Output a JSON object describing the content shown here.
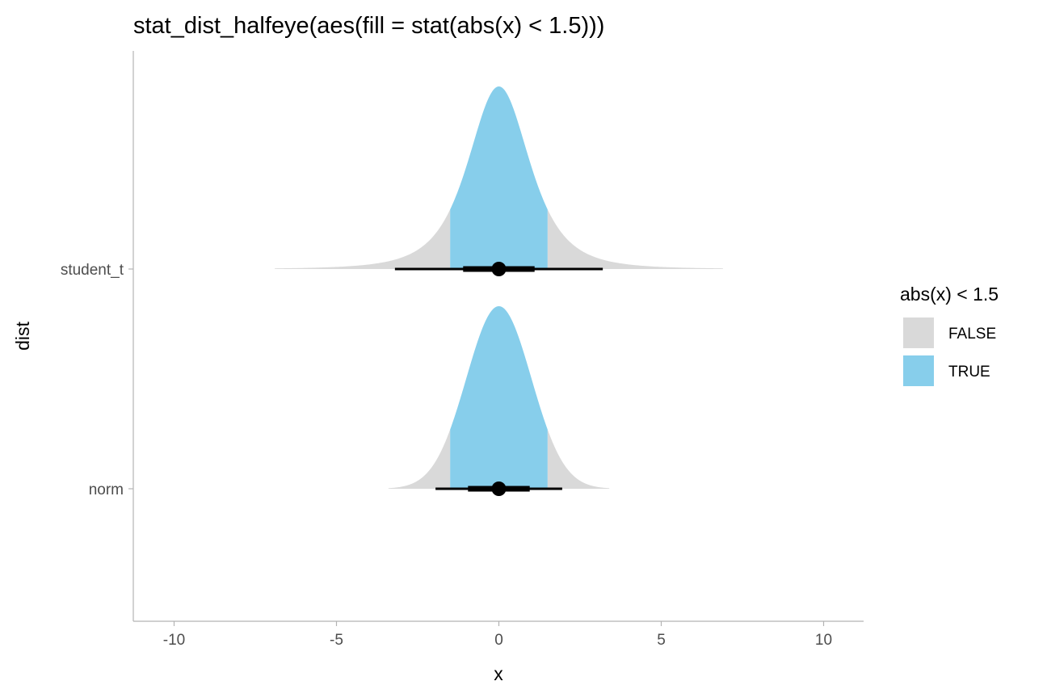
{
  "chart_data": {
    "type": "halfeye",
    "title": "stat_dist_halfeye(aes(fill = stat(abs(x) < 1.5)))",
    "xlabel": "x",
    "ylabel": "dist",
    "xlim": [
      -10,
      10
    ],
    "x_ticks": [
      -10,
      -5,
      0,
      5,
      10
    ],
    "x_tick_labels": [
      "-10",
      "-5",
      "0",
      "5",
      "10"
    ],
    "categories": [
      "student_t",
      "norm"
    ],
    "fill_threshold": 1.5,
    "series": [
      {
        "name": "student_t",
        "distribution": "student_t",
        "df": 3,
        "density_range": [
          -6.9,
          6.9
        ],
        "point": 0,
        "interval_66": [
          -1.1,
          1.1
        ],
        "interval_95": [
          -3.2,
          3.2
        ]
      },
      {
        "name": "norm",
        "distribution": "norm",
        "density_range": [
          -3.4,
          3.4
        ],
        "point": 0,
        "interval_66": [
          -0.95,
          0.95
        ],
        "interval_95": [
          -1.95,
          1.95
        ]
      }
    ],
    "legend": {
      "title": "abs(x) < 1.5",
      "position": "right",
      "items": [
        {
          "label": "FALSE",
          "color": "#d9d9d9"
        },
        {
          "label": "TRUE",
          "color": "#87ceeb"
        }
      ]
    },
    "colors": {
      "false_fill": "#d9d9d9",
      "true_fill": "#87ceeb",
      "interval": "#000000",
      "axis": "#b3b3b3"
    }
  }
}
